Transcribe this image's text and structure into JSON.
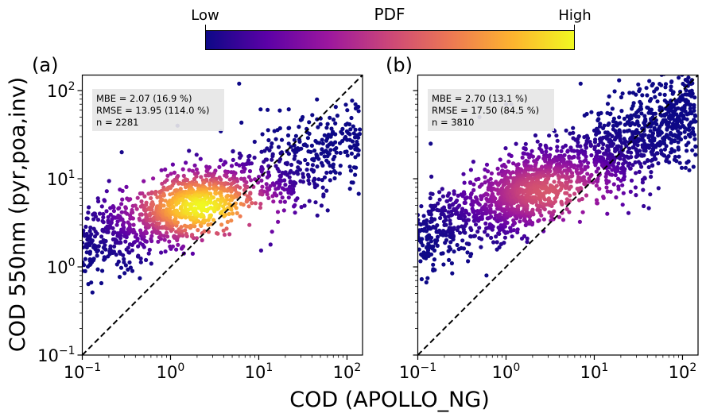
{
  "chart_data": {
    "type": "scatter",
    "colorbar": {
      "title": "PDF",
      "low_label": "Low",
      "high_label": "High",
      "colormap": "plasma",
      "stops": [
        "#0d0887",
        "#5c01a6",
        "#9c179e",
        "#cc4778",
        "#ed7953",
        "#fdb42f",
        "#f0f921"
      ]
    },
    "shared_xlabel": "COD (APOLLO_NG)",
    "shared_ylabel": "COD 550nm (pyr,poa,inv)",
    "panels": [
      {
        "label": "(a)",
        "xscale": "log",
        "yscale": "log",
        "xlim": [
          0.1,
          150
        ],
        "ylim": [
          0.1,
          150
        ],
        "xticks": [
          {
            "base": "10",
            "exp": "−1"
          },
          {
            "base": "10",
            "exp": "0"
          },
          {
            "base": "10",
            "exp": "1"
          },
          {
            "base": "10",
            "exp": "2"
          }
        ],
        "yticks": [
          {
            "base": "10",
            "exp": "−1"
          },
          {
            "base": "10",
            "exp": "0"
          },
          {
            "base": "10",
            "exp": "1"
          },
          {
            "base": "10",
            "exp": "2"
          }
        ],
        "show_ytick_labels": true,
        "reference_line": "1:1 dashed black",
        "stats": {
          "mbe": "MBE = 2.07 (16.9 %)",
          "rmse": "RMSE = 13.95 (114.0 %)",
          "n": "n = 2281"
        },
        "n_points": 2281,
        "density_center": {
          "x": 2.5,
          "y": 5.0
        },
        "density_peak": "yellow",
        "distribution": {
          "low_x_cluster": {
            "x_range": [
              0.1,
              2.0
            ],
            "y_range": [
              1.2,
              12
            ],
            "color": "yellow-orange"
          },
          "mid_cluster": {
            "x_range": [
              1.0,
              10
            ],
            "y_range": [
              2.5,
              15
            ],
            "color": "yellow"
          },
          "high_x_cluster": {
            "x_range": [
              10,
              120
            ],
            "y_range": [
              2.5,
              140
            ],
            "color": "dark-blue"
          }
        },
        "notable_points": [
          {
            "x": 1.2,
            "y": 40
          },
          {
            "x": 6.0,
            "y": 120
          },
          {
            "x": 0.28,
            "y": 20
          },
          {
            "x": 0.1,
            "y": 0.9
          }
        ]
      },
      {
        "label": "(b)",
        "xscale": "log",
        "yscale": "log",
        "xlim": [
          0.1,
          150
        ],
        "ylim": [
          0.1,
          150
        ],
        "xticks": [
          {
            "base": "10",
            "exp": "−1"
          },
          {
            "base": "10",
            "exp": "0"
          },
          {
            "base": "10",
            "exp": "1"
          },
          {
            "base": "10",
            "exp": "2"
          }
        ],
        "show_ytick_labels": false,
        "reference_line": "1:1 dashed black",
        "stats": {
          "mbe": "MBE = 2.70 (13.1 %)",
          "rmse": "RMSE = 17.50 (84.5 %)",
          "n": "n = 3810"
        },
        "n_points": 3810,
        "density_center": {
          "x": 3.0,
          "y": 7.0
        },
        "density_peak": "salmon-pink",
        "distribution": {
          "low_x_cluster": {
            "x_range": [
              0.1,
              2.0
            ],
            "y_range": [
              1.2,
              20
            ],
            "color": "pink-magenta"
          },
          "mid_cluster": {
            "x_range": [
              1.0,
              15
            ],
            "y_range": [
              3,
              20
            ],
            "color": "salmon"
          },
          "high_x_cluster": {
            "x_range": [
              10,
              150
            ],
            "y_range": [
              3,
              150
            ],
            "color": "dark-blue"
          }
        },
        "notable_points": [
          {
            "x": 0.5,
            "y": 50
          },
          {
            "x": 1.0,
            "y": 70
          },
          {
            "x": 1.15,
            "y": 70
          },
          {
            "x": 0.14,
            "y": 25
          },
          {
            "x": 0.6,
            "y": 0.8
          },
          {
            "x": 7.0,
            "y": 120
          }
        ]
      }
    ]
  }
}
